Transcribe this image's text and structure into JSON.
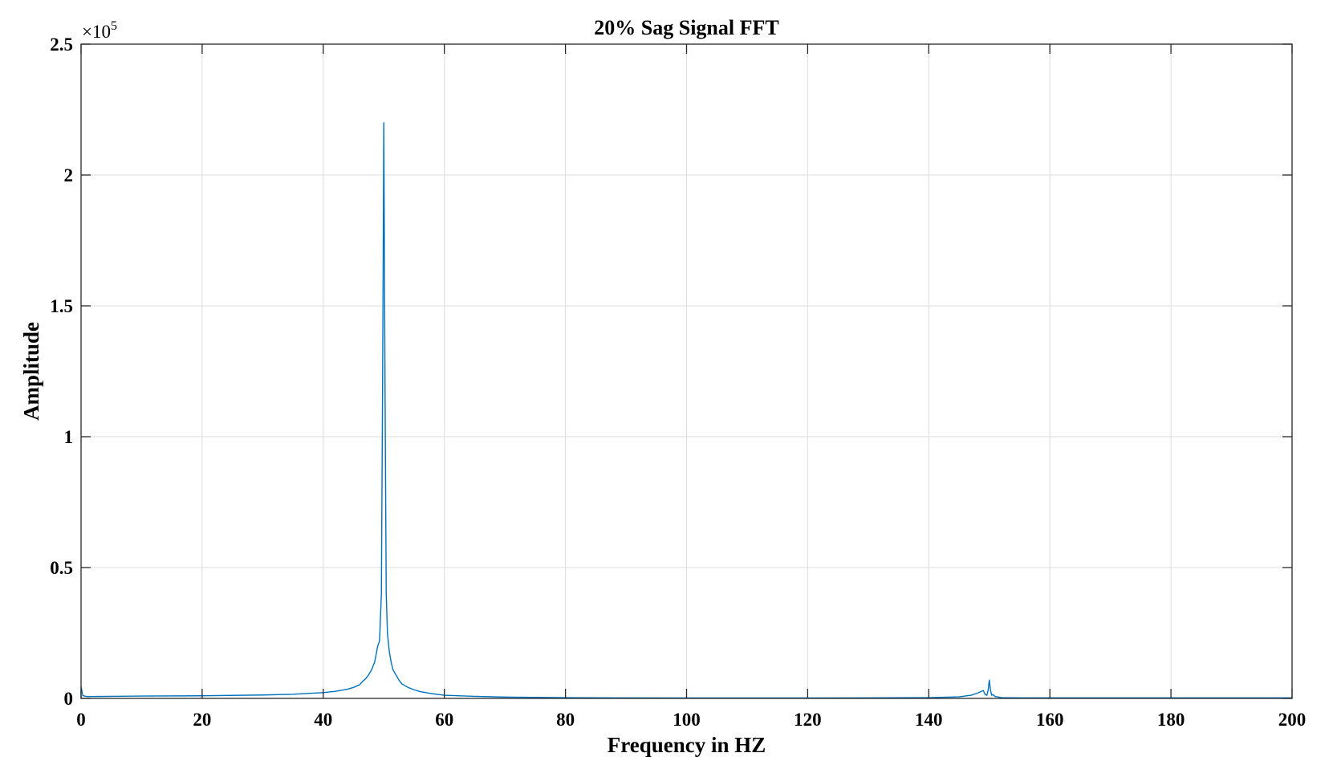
{
  "chart_data": {
    "type": "line",
    "title": "20% Sag Signal FFT",
    "xlabel": "Frequency in HZ",
    "ylabel": "Amplitude",
    "xlim": [
      0,
      200
    ],
    "ylim": [
      0,
      250000
    ],
    "y_exponent_label": "×10",
    "y_exponent_power": "5",
    "x_ticks": [
      0,
      20,
      40,
      60,
      80,
      100,
      120,
      140,
      160,
      180,
      200
    ],
    "x_tick_labels": [
      "0",
      "20",
      "40",
      "60",
      "80",
      "100",
      "120",
      "140",
      "160",
      "180",
      "200"
    ],
    "y_ticks": [
      0,
      50000,
      100000,
      150000,
      200000,
      250000
    ],
    "y_tick_labels": [
      "0",
      "0.5",
      "1",
      "1.5",
      "2",
      "2.5"
    ],
    "grid": true,
    "legend": "none",
    "series": [
      {
        "color": "#0072BD",
        "x": [
          0,
          0.3,
          1,
          5,
          10,
          20,
          30,
          35,
          40,
          42,
          44,
          45,
          46,
          46.5,
          47,
          47.5,
          48,
          48.5,
          49,
          49.3,
          49.6,
          49.8,
          50,
          50.2,
          50.4,
          50.6,
          50.9,
          51.2,
          51.5,
          52,
          52.5,
          53,
          54,
          55,
          56,
          58,
          60,
          65,
          70,
          80,
          90,
          100,
          110,
          120,
          130,
          140,
          145,
          147,
          148,
          148.5,
          149,
          149.3,
          149.6,
          149.8,
          150,
          150.2,
          150.4,
          150.6,
          150.8,
          151,
          151.5,
          152,
          155,
          160,
          170,
          180,
          190,
          200
        ],
        "y": [
          4500,
          1000,
          700,
          800,
          900,
          1000,
          1300,
          1600,
          2200,
          2700,
          3500,
          4200,
          5200,
          6500,
          7500,
          9000,
          11000,
          14000,
          20000,
          22000,
          40000,
          120000,
          220000,
          120000,
          40000,
          25000,
          18000,
          14000,
          11000,
          9000,
          7000,
          5500,
          4200,
          3300,
          2600,
          1800,
          1200,
          800,
          500,
          300,
          200,
          150,
          150,
          150,
          200,
          300,
          600,
          1200,
          2000,
          2500,
          3000,
          1500,
          1200,
          3000,
          7000,
          3000,
          1200,
          1500,
          1000,
          700,
          500,
          300,
          200,
          200,
          200,
          200,
          200,
          200
        ]
      }
    ]
  }
}
